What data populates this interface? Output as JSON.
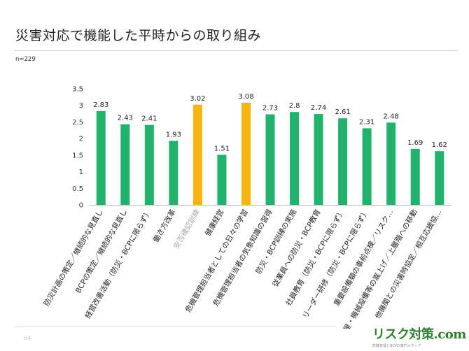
{
  "slide": {
    "title": "災害対応で機能した平時からの取り組み",
    "sample_note": "n=229",
    "page_number": "64"
  },
  "logo": {
    "text": "リスク対策.com",
    "tagline": "危機管理とBCPの専門メディア"
  },
  "colors": {
    "bar_default": "#21b36b",
    "bar_highlight": "#f5b50d",
    "label_muted": "#aaaaaa"
  },
  "chart_data": {
    "type": "bar",
    "categories": [
      "防災計画の策定／継続的な見直し",
      "BCPの策定／継続的な見直し",
      "経営改善活動（防災・BCPに限らず）",
      "働き方改革",
      "安否確認訓練",
      "健康経営",
      "危機管理担当者としての日々の学習",
      "危機管理担当者の気象知識の習得",
      "防災・BCP訓練の実施",
      "従業員への防災・BCP教育",
      "社員教育（防災・BCPに限らず）",
      "リーダー研修（防災・BCPに限らず）",
      "重要設備類の事前点検／リスク…",
      "社屋・機械設備等の嵩上げ／上層階への移動",
      "他機関との災害時協定／相互応援協…"
    ],
    "values": [
      2.83,
      2.43,
      2.41,
      1.93,
      3.02,
      1.51,
      3.08,
      2.73,
      2.8,
      2.74,
      2.61,
      2.31,
      2.48,
      1.69,
      1.62
    ],
    "highlighted": [
      false,
      false,
      false,
      false,
      true,
      false,
      true,
      false,
      false,
      false,
      false,
      false,
      false,
      false,
      false
    ],
    "ylim": [
      0,
      3.5
    ],
    "yticks": [
      "0",
      "0.5",
      "1",
      "1.5",
      "2",
      "2.5",
      "3",
      "3.5"
    ],
    "grid": false,
    "legend": "none"
  }
}
